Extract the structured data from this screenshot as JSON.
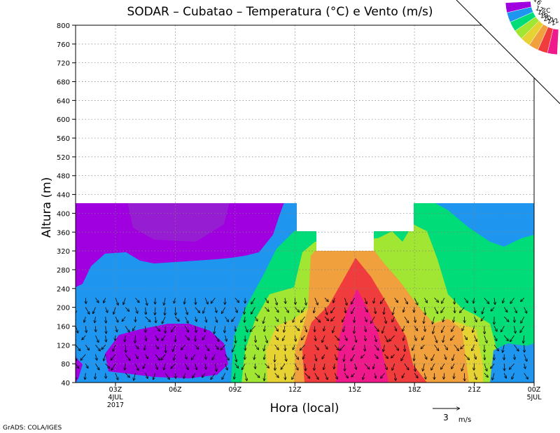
{
  "chart_data": {
    "type": "heatmap",
    "title": "SODAR – Cubatao – Temperatura (°C) e Vento (m/s)",
    "xlabel": "Hora (local)",
    "ylabel": "Altura (m)",
    "y_ticks": [
      40,
      80,
      120,
      160,
      200,
      240,
      280,
      320,
      360,
      400,
      440,
      480,
      520,
      560,
      600,
      640,
      680,
      720,
      760,
      800
    ],
    "ylim": [
      40,
      800
    ],
    "x_ticks": [
      {
        "hour": 3,
        "label": "03Z",
        "sub1": "4JUL",
        "sub2": "2017"
      },
      {
        "hour": 6,
        "label": "06Z",
        "sub1": "",
        "sub2": ""
      },
      {
        "hour": 9,
        "label": "09Z",
        "sub1": "",
        "sub2": ""
      },
      {
        "hour": 12,
        "label": "12Z",
        "sub1": "",
        "sub2": ""
      },
      {
        "hour": 15,
        "label": "15Z",
        "sub1": "",
        "sub2": ""
      },
      {
        "hour": 18,
        "label": "18Z",
        "sub1": "",
        "sub2": ""
      },
      {
        "hour": 21,
        "label": "21Z",
        "sub1": "",
        "sub2": ""
      },
      {
        "hour": 24,
        "label": "00Z",
        "sub1": "5JUL",
        "sub2": ""
      }
    ],
    "xlim": [
      1,
      24
    ],
    "grid": true,
    "legend": {
      "position": "top-right",
      "unit": "°C",
      "levels": [
        {
          "label": "22",
          "color": "#f0198c"
        },
        {
          "label": "21",
          "color": "#f03c3c"
        },
        {
          "label": "20",
          "color": "#f0a03c"
        },
        {
          "label": "19",
          "color": "#e6d232"
        },
        {
          "label": "18",
          "color": "#a0e632"
        },
        {
          "label": "17",
          "color": "#00dc78"
        },
        {
          "label": "",
          "color": "#1e96f0"
        },
        {
          "label": "16",
          "color": "#a000e0"
        }
      ]
    },
    "wind_reference": {
      "value": "3",
      "unit": "m/s"
    }
  },
  "footer": {
    "credit": "GrADS: COLA/IGES"
  }
}
